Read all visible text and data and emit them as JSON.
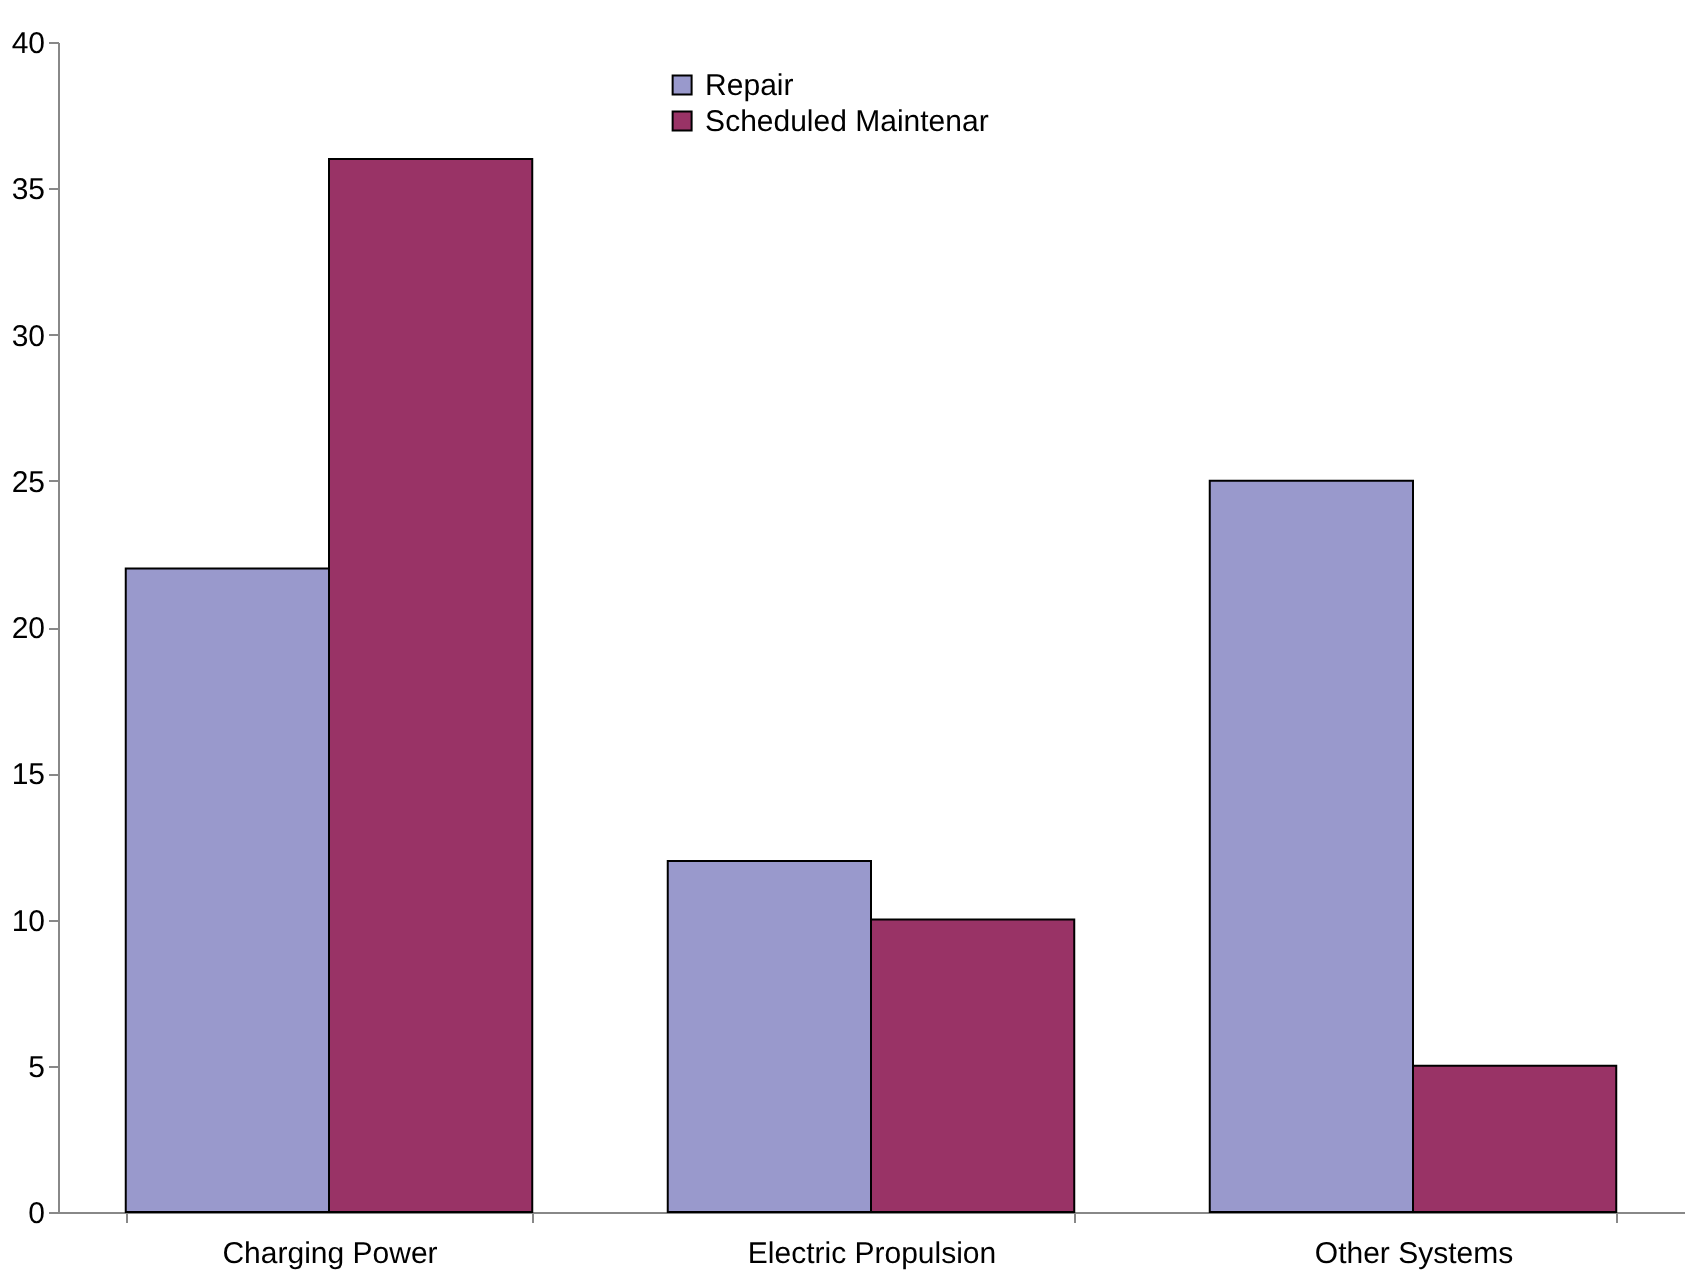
{
  "chart_data": {
    "type": "bar",
    "categories": [
      "Charging Power",
      "Electric Propulsion",
      "Other Systems"
    ],
    "series": [
      {
        "name": "Repair",
        "color": "#9999cc",
        "values": [
          22,
          12,
          25
        ]
      },
      {
        "name": "Scheduled Maintenar",
        "color": "#993366",
        "values": [
          36,
          10,
          5
        ]
      }
    ],
    "ylim": [
      0,
      40
    ],
    "yticks": [
      0,
      5,
      10,
      15,
      20,
      25,
      30,
      35,
      40
    ],
    "grid": false,
    "legend": "top"
  }
}
